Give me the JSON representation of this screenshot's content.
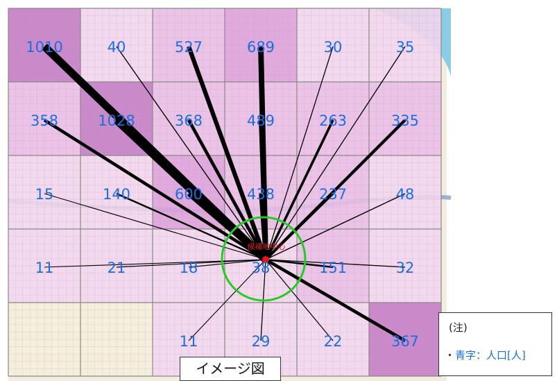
{
  "grid": {
    "rows": 5,
    "cols": 6,
    "cells": [
      [
        {
          "pop": "1010",
          "level": 4
        },
        {
          "pop": "40",
          "level": 1
        },
        {
          "pop": "527",
          "level": 2
        },
        {
          "pop": "689",
          "level": 3
        },
        {
          "pop": "30",
          "level": 1
        },
        {
          "pop": "35",
          "level": 1
        }
      ],
      [
        {
          "pop": "358",
          "level": 2
        },
        {
          "pop": "1028",
          "level": 4
        },
        {
          "pop": "368",
          "level": 2
        },
        {
          "pop": "489",
          "level": 2
        },
        {
          "pop": "263",
          "level": 2
        },
        {
          "pop": "335",
          "level": 2
        }
      ],
      [
        {
          "pop": "15",
          "level": 1
        },
        {
          "pop": "140",
          "level": 1
        },
        {
          "pop": "600",
          "level": 3
        },
        {
          "pop": "438",
          "level": 2
        },
        {
          "pop": "237",
          "level": 2
        },
        {
          "pop": "48",
          "level": 1
        }
      ],
      [
        {
          "pop": "11",
          "level": 1
        },
        {
          "pop": "21",
          "level": 1
        },
        {
          "pop": "18",
          "level": 1
        },
        {
          "pop": "38",
          "level": 1
        },
        {
          "pop": "151",
          "level": 2
        },
        {
          "pop": "32",
          "level": 1
        }
      ],
      [
        {
          "pop": "",
          "level": 0
        },
        {
          "pop": "",
          "level": 0
        },
        {
          "pop": "11",
          "level": 1
        },
        {
          "pop": "29",
          "level": 1
        },
        {
          "pop": "22",
          "level": 1
        },
        {
          "pop": "367",
          "level": 4
        }
      ]
    ]
  },
  "center_label": "候補地中心",
  "fill_colors": [
    "#f4efd8",
    "#f3d6ee",
    "#e9bde6",
    "#dea0dc",
    "#c47cc6"
  ],
  "population_text_color": "#1a6fe0",
  "circle_color": "#22cc22",
  "center_dot_color": "#ee1111",
  "note": {
    "title": "(注)",
    "bullet": "・",
    "text": "青字：人口[人]"
  },
  "image_label": "イメージ図"
}
